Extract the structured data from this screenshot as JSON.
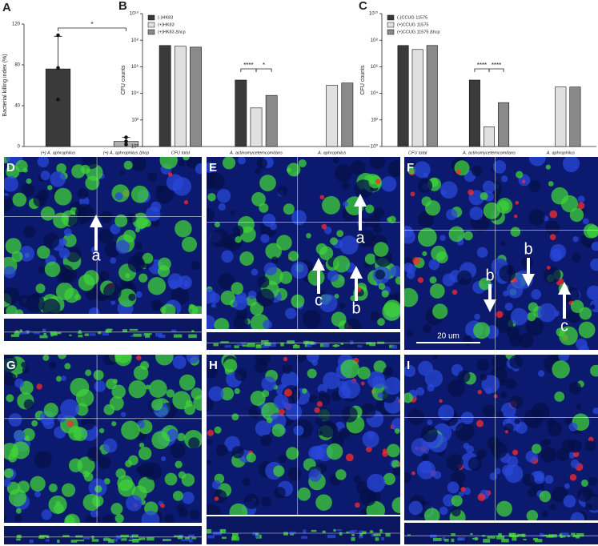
{
  "chart_data": [
    {
      "type": "bar",
      "label": "A",
      "ylabel": "Bacterial killing index (%)",
      "categories": [
        "(+) A. aphrophilus",
        "(+) A. aphrophilus Δhcp"
      ],
      "values": [
        76,
        5
      ],
      "errors": [
        32,
        4
      ],
      "points": [
        [
          109,
          77,
          46
        ],
        [
          9,
          5,
          2
        ]
      ],
      "color": "#3a3a3a",
      "color2": "#b0b0b0",
      "ylim": [
        0,
        120
      ],
      "yticks": [
        0,
        40,
        80,
        120
      ],
      "significance": [
        "*"
      ]
    },
    {
      "type": "grouped-bar",
      "label": "B",
      "ylabel": "CFU counts",
      "log": true,
      "categories": [
        "CFU total",
        "A. actinomycetemcomitans",
        "A. aphrophilus"
      ],
      "series": [
        {
          "name": "(-)HK83",
          "color": "#3a3a3a",
          "values": [
            40000000,
            100000,
            null
          ]
        },
        {
          "name": "(+)HK83",
          "color": "#e0e0e0",
          "values": [
            35000000,
            800,
            40000
          ]
        },
        {
          "name": "(+)HK83 Δhcp",
          "color": "#8a8a8a",
          "values": [
            30000000,
            7000,
            60000
          ]
        }
      ],
      "ylim": [
        1,
        10000000000
      ],
      "yticks": [
        {
          "value": 1,
          "label": "10⁰"
        },
        {
          "value": 100,
          "label": "10²"
        },
        {
          "value": 10000,
          "label": "10⁴"
        },
        {
          "value": 1000000,
          "label": "10⁶"
        },
        {
          "value": 100000000,
          "label": "10⁸"
        },
        {
          "value": 10000000000,
          "label": "10¹⁰"
        }
      ],
      "legend": "upper left",
      "significance": [
        "****",
        "*"
      ]
    },
    {
      "type": "grouped-bar",
      "label": "C",
      "ylabel": "CFU counts",
      "log": true,
      "categories": [
        "CFU total",
        "A. actinomycetemcomitans",
        "A. aphrophilus"
      ],
      "series": [
        {
          "name": "(-)CCUG 11575",
          "color": "#3a3a3a",
          "values": [
            40000000,
            100000,
            null
          ]
        },
        {
          "name": "(+)CCUG 11575",
          "color": "#e0e0e0",
          "values": [
            20000000,
            30,
            30000
          ]
        },
        {
          "name": "(+)CCUG 11575 Δhcp",
          "color": "#8a8a8a",
          "values": [
            40000000,
            2000,
            30000
          ]
        }
      ],
      "ylim": [
        1,
        10000000000
      ],
      "yticks": [
        {
          "value": 1,
          "label": "10⁰"
        },
        {
          "value": 100,
          "label": "10²"
        },
        {
          "value": 10000,
          "label": "10⁴"
        },
        {
          "value": 1000000,
          "label": "10⁶"
        },
        {
          "value": 100000000,
          "label": "10⁸"
        },
        {
          "value": 10000000000,
          "label": "10¹⁰"
        }
      ],
      "legend": "upper left",
      "significance": [
        "****",
        "****"
      ]
    }
  ],
  "panels": [
    {
      "label": "D",
      "annotations": [
        "a"
      ]
    },
    {
      "label": "E",
      "annotations": [
        "a",
        "c",
        "b"
      ]
    },
    {
      "label": "F",
      "annotations": [
        "b",
        "b",
        "c"
      ],
      "scale_bar": "20 um"
    },
    {
      "label": "G",
      "annotations": []
    },
    {
      "label": "H",
      "annotations": []
    },
    {
      "label": "I",
      "annotations": []
    }
  ]
}
